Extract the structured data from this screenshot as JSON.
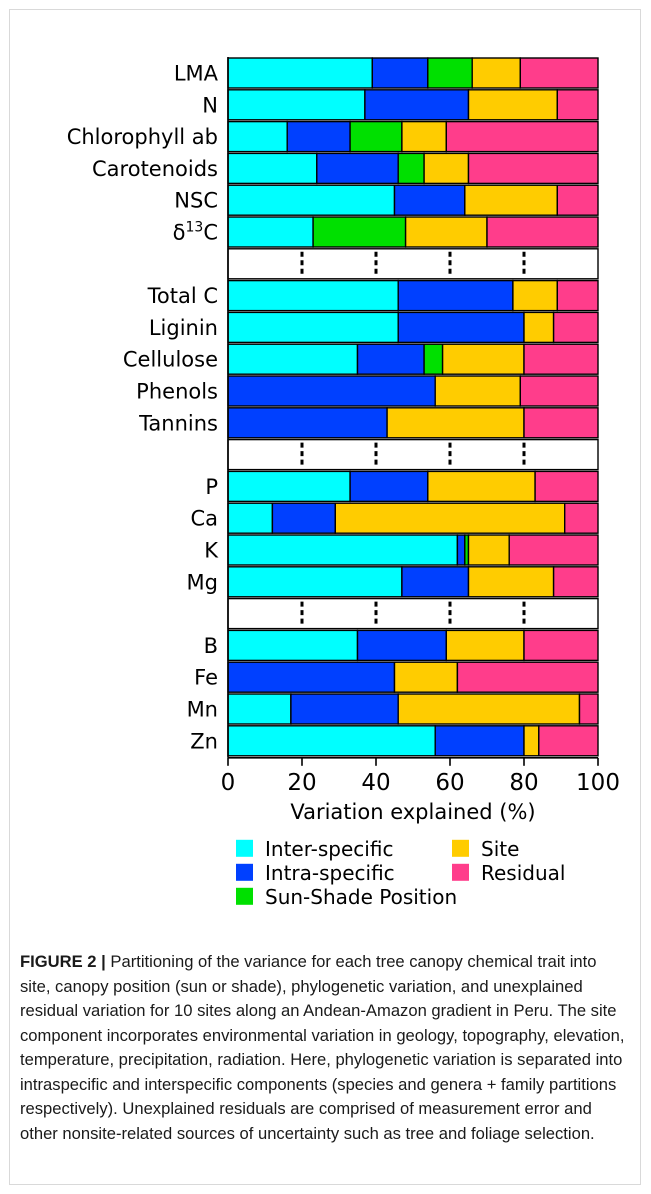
{
  "chart_data": {
    "type": "bar",
    "orientation": "horizontal",
    "stacked": true,
    "xlabel": "Variation explained (%)",
    "xlim": [
      0,
      100
    ],
    "xticks": [
      "0",
      "20",
      "40",
      "60",
      "80",
      "100"
    ],
    "separator_ticks": [
      20,
      40,
      60,
      80
    ],
    "legend_position": "bottom",
    "components": [
      "Inter-specific",
      "Intra-specific",
      "Sun-Shade Position",
      "Site",
      "Residual"
    ],
    "colors": {
      "Inter-specific": "#00ffff",
      "Intra-specific": "#0040ff",
      "Sun-Shade Position": "#00e000",
      "Site": "#ffcc00",
      "Residual": "#ff3d8b"
    },
    "groups": [
      [
        {
          "label": "LMA",
          "values": [
            39,
            15,
            12,
            13,
            21
          ]
        },
        {
          "label": "N",
          "values": [
            37,
            28,
            0,
            24,
            11
          ]
        },
        {
          "label": "Chlorophyll ab",
          "values": [
            16,
            17,
            14,
            12,
            41
          ]
        },
        {
          "label": "Carotenoids",
          "values": [
            24,
            22,
            7,
            12,
            35
          ]
        },
        {
          "label": "NSC",
          "values": [
            45,
            19,
            0,
            25,
            11
          ]
        },
        {
          "label": "δ13C",
          "label_main": "δ",
          "label_sup": "13",
          "label_tail": "C",
          "values": [
            23,
            0,
            25,
            22,
            30
          ]
        }
      ],
      [
        {
          "label": "Total C",
          "values": [
            46,
            31,
            0,
            12,
            11
          ]
        },
        {
          "label": "Liginin",
          "values": [
            46,
            34,
            0,
            8,
            12
          ]
        },
        {
          "label": "Cellulose",
          "values": [
            35,
            18,
            5,
            22,
            20
          ]
        },
        {
          "label": "Phenols",
          "values": [
            0,
            56,
            0,
            23,
            21
          ]
        },
        {
          "label": "Tannins",
          "values": [
            0,
            43,
            0,
            37,
            20
          ]
        }
      ],
      [
        {
          "label": "P",
          "values": [
            33,
            21,
            0,
            29,
            17
          ]
        },
        {
          "label": "Ca",
          "values": [
            12,
            17,
            0,
            62,
            9
          ]
        },
        {
          "label": "K",
          "values": [
            62,
            2,
            1,
            11,
            24
          ]
        },
        {
          "label": "Mg",
          "values": [
            47,
            18,
            0,
            23,
            12
          ]
        }
      ],
      [
        {
          "label": "B",
          "values": [
            35,
            24,
            0,
            21,
            20
          ]
        },
        {
          "label": "Fe",
          "values": [
            0,
            45,
            0,
            17,
            38
          ]
        },
        {
          "label": "Mn",
          "values": [
            17,
            29,
            0,
            49,
            5
          ]
        },
        {
          "label": "Zn",
          "values": [
            56,
            24,
            0,
            4,
            16
          ]
        }
      ]
    ]
  },
  "caption": {
    "label": "FIGURE 2 |",
    "text": "Partitioning of the variance for each tree canopy chemical trait into site, canopy position (sun or shade), phylogenetic variation, and unexplained residual variation for 10 sites along an Andean-Amazon gradient in Peru. The site component incorporates environmental variation in geology, topography, elevation, temperature, precipitation, radiation. Here, phylogenetic variation is separated into intraspecific and interspecific components (species and genera + family partitions respectively). Unexplained residuals are comprised of measurement error and other nonsite-related sources of uncertainty such as tree and foliage selection."
  }
}
